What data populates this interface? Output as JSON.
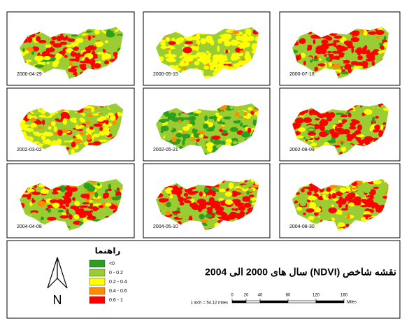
{
  "panels": [
    {
      "date": "2000-04-29"
    },
    {
      "date": "2000-05-15"
    },
    {
      "date": "2000-07-18"
    },
    {
      "date": "2002-03-02"
    },
    {
      "date": "2002-05-21"
    },
    {
      "date": "2002-08-09"
    },
    {
      "date": "2004-04-08"
    },
    {
      "date": "2004-05-10"
    },
    {
      "date": "2004-08-30"
    }
  ],
  "legend": {
    "title": "راهنما",
    "items": [
      {
        "label": "<0",
        "color": "#2e9e1f"
      },
      {
        "label": "0 - 0.2",
        "color": "#9acd32"
      },
      {
        "label": "0.2 - 0.4",
        "color": "#ffff00"
      },
      {
        "label": "0.4 - 0.6",
        "color": "#ff8c00"
      },
      {
        "label": "0.6 - 1",
        "color": "#ff0000"
      }
    ]
  },
  "title": "نقشه شاخص (NDVI) سال های 2000 الی 2004",
  "north_label": "N",
  "scale": {
    "text": "1 inch = 54.12 miles",
    "ticks": [
      0,
      20,
      40,
      80,
      120,
      160
    ],
    "unit": "Miles"
  }
}
